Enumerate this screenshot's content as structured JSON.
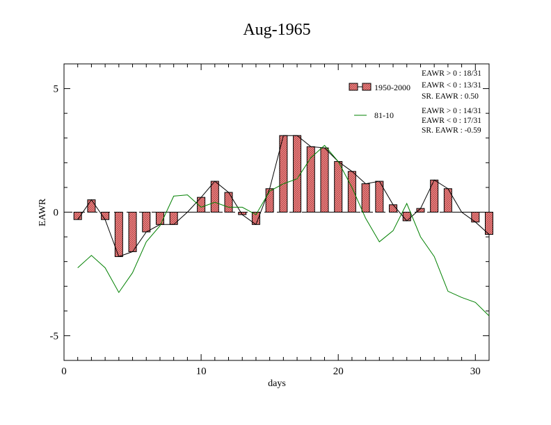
{
  "chart_data": {
    "type": "bar",
    "title": "Aug-1965",
    "xlabel": "days",
    "ylabel": "EAWR",
    "xlim": [
      0,
      31
    ],
    "ylim": [
      -6,
      6
    ],
    "x_ticks": [
      0,
      10,
      20,
      30
    ],
    "y_ticks": [
      5,
      0,
      -5
    ],
    "x_tick_labels": [
      "0",
      "10",
      "20",
      "30"
    ],
    "y_tick_labels": [
      "5",
      "0",
      "-5"
    ],
    "grid": false,
    "legend_position": "top-right",
    "days": [
      1,
      2,
      3,
      4,
      5,
      6,
      7,
      8,
      9,
      10,
      11,
      12,
      13,
      14,
      15,
      16,
      17,
      18,
      19,
      20,
      21,
      22,
      23,
      24,
      25,
      26,
      27,
      28,
      29,
      30,
      31
    ],
    "series": [
      {
        "name": "1950-2000",
        "kind": "bar+line",
        "color": "#f08080",
        "line_color": "#000000",
        "values": [
          -0.3,
          0.5,
          -0.3,
          -1.8,
          -1.6,
          -0.8,
          -0.5,
          -0.5,
          0.0,
          0.6,
          1.25,
          0.8,
          -0.1,
          -0.5,
          0.95,
          3.1,
          3.1,
          2.65,
          2.6,
          2.05,
          1.65,
          1.15,
          1.25,
          0.3,
          -0.35,
          0.15,
          1.3,
          0.95,
          0.0,
          -0.4,
          -0.9
        ]
      },
      {
        "name": "81-10",
        "kind": "line",
        "color": "#008000",
        "values": [
          -2.25,
          -1.75,
          -2.25,
          -3.25,
          -2.45,
          -1.2,
          -0.55,
          0.65,
          0.7,
          0.2,
          0.4,
          0.2,
          0.2,
          -0.1,
          0.85,
          1.15,
          1.35,
          2.2,
          2.7,
          2.05,
          1.0,
          -0.25,
          -1.2,
          -0.75,
          0.35,
          -1.0,
          -1.8,
          -3.2,
          -3.45,
          -3.65,
          -4.2
        ]
      }
    ],
    "annotations": {
      "block1": [
        "EAWR > 0 : 18/31",
        "EAWR < 0 : 13/31",
        "SR. EAWR :  0.50"
      ],
      "block2": [
        "EAWR > 0 : 14/31",
        "EAWR < 0 : 17/31",
        "SR. EAWR : -0.59"
      ]
    }
  }
}
